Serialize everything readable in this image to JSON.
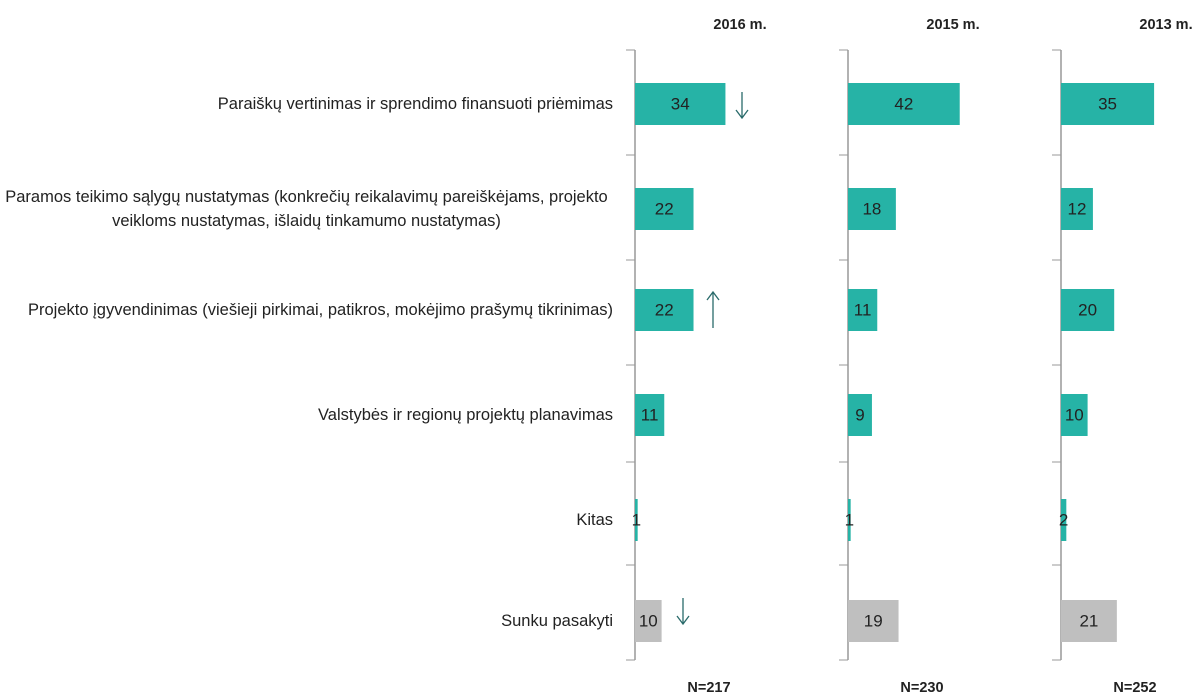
{
  "chart_data": {
    "type": "bar",
    "orientation": "horizontal",
    "categories": [
      "Paraiškų vertinimas ir sprendimo finansuoti priėmimas",
      "Paramos teikimo sąlygų nustatymas (konkrečių reikalavimų pareiškėjams, projekto veikloms nustatymas, išlaidų tinkamumo nustatymas)",
      "Projekto įgyvendinimas (viešieji pirkimai, patikros, mokėjimo prašymų tikrinimas)",
      "Valstybės ir regionų projektų planavimas",
      "Kitas",
      "Sunku pasakyti"
    ],
    "colors": [
      "#26b3a6",
      "#26b3a6",
      "#26b3a6",
      "#26b3a6",
      "#26b3a6",
      "#bfbfbf"
    ],
    "series": [
      {
        "name": "2016 m.",
        "note": "N=217",
        "values": [
          34,
          22,
          22,
          11,
          1,
          10
        ]
      },
      {
        "name": "2015 m.",
        "note": "N=230",
        "values": [
          42,
          18,
          11,
          9,
          1,
          19
        ]
      },
      {
        "name": "2013 m.",
        "note": "N=252",
        "values": [
          35,
          12,
          20,
          10,
          2,
          21
        ]
      }
    ]
  }
}
